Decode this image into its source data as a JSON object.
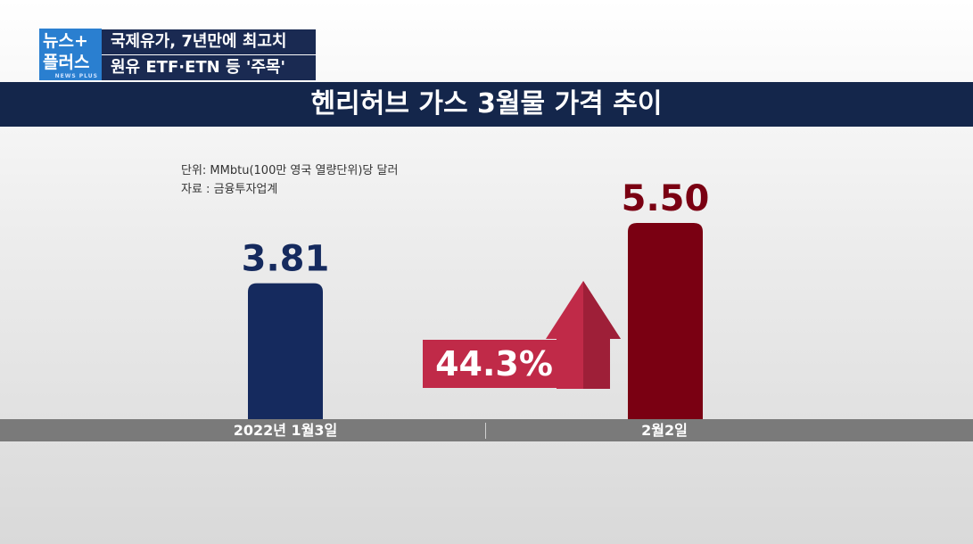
{
  "logo": {
    "line1": "뉴스+",
    "line2": "플러스",
    "sub": "NEWS PLUS"
  },
  "headline": {
    "line1": "국제유가, 7년만에 최고치",
    "line2": "원유 ETF·ETN 등 '주목'"
  },
  "chart_data": {
    "type": "bar",
    "title": "헨리허브 가스 3월물 가격 추이",
    "unit_note": "단위: MMbtu(100만 영국 열량단위)당 달러",
    "source_note": "자료 : 금융투자업계",
    "categories": [
      "2022년 1월3일",
      "2월2일"
    ],
    "values": [
      3.81,
      5.5
    ],
    "value_labels": [
      "3.81",
      "5.50"
    ],
    "bar_colors": [
      "#152a5e",
      "#7a0012"
    ],
    "change_label": "44.3%",
    "ylim": [
      0,
      6
    ]
  }
}
